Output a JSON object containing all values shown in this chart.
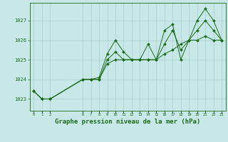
{
  "title": "Graphe pression niveau de la mer (hPa)",
  "bg_color": "#c8e8e8",
  "line_color": "#1a6b1a",
  "grid_color": "#a8cccc",
  "x_ticks": [
    0,
    1,
    2,
    6,
    7,
    8,
    9,
    10,
    11,
    12,
    13,
    14,
    15,
    16,
    17,
    18,
    19,
    20,
    21,
    22,
    23
  ],
  "ylim": [
    1022.4,
    1027.9
  ],
  "yticks": [
    1023,
    1024,
    1025,
    1026,
    1027
  ],
  "series1": [
    [
      0,
      1023.4
    ],
    [
      1,
      1023.0
    ],
    [
      2,
      1023.0
    ],
    [
      6,
      1024.0
    ],
    [
      7,
      1024.0
    ],
    [
      8,
      1024.1
    ],
    [
      9,
      1025.3
    ],
    [
      10,
      1026.0
    ],
    [
      11,
      1025.4
    ],
    [
      12,
      1025.0
    ],
    [
      13,
      1025.0
    ],
    [
      14,
      1025.8
    ],
    [
      15,
      1025.0
    ],
    [
      16,
      1026.5
    ],
    [
      17,
      1026.8
    ],
    [
      18,
      1025.0
    ],
    [
      19,
      1026.0
    ],
    [
      20,
      1027.0
    ],
    [
      21,
      1027.6
    ],
    [
      22,
      1027.0
    ],
    [
      23,
      1026.0
    ]
  ],
  "series2": [
    [
      0,
      1023.4
    ],
    [
      1,
      1023.0
    ],
    [
      2,
      1023.0
    ],
    [
      6,
      1024.0
    ],
    [
      7,
      1024.0
    ],
    [
      8,
      1024.0
    ],
    [
      9,
      1025.0
    ],
    [
      10,
      1025.4
    ],
    [
      11,
      1025.0
    ],
    [
      12,
      1025.0
    ],
    [
      13,
      1025.0
    ],
    [
      14,
      1025.0
    ],
    [
      15,
      1025.0
    ],
    [
      16,
      1025.8
    ],
    [
      17,
      1026.5
    ],
    [
      18,
      1025.5
    ],
    [
      19,
      1026.0
    ],
    [
      20,
      1026.5
    ],
    [
      21,
      1027.0
    ],
    [
      22,
      1026.5
    ],
    [
      23,
      1026.0
    ]
  ],
  "series3": [
    [
      0,
      1023.4
    ],
    [
      1,
      1023.0
    ],
    [
      2,
      1023.0
    ],
    [
      6,
      1024.0
    ],
    [
      7,
      1024.0
    ],
    [
      8,
      1024.0
    ],
    [
      9,
      1024.8
    ],
    [
      10,
      1025.0
    ],
    [
      11,
      1025.0
    ],
    [
      12,
      1025.0
    ],
    [
      13,
      1025.0
    ],
    [
      14,
      1025.0
    ],
    [
      15,
      1025.0
    ],
    [
      16,
      1025.3
    ],
    [
      17,
      1025.5
    ],
    [
      18,
      1025.8
    ],
    [
      19,
      1026.0
    ],
    [
      20,
      1026.0
    ],
    [
      21,
      1026.2
    ],
    [
      22,
      1026.0
    ],
    [
      23,
      1026.0
    ]
  ]
}
